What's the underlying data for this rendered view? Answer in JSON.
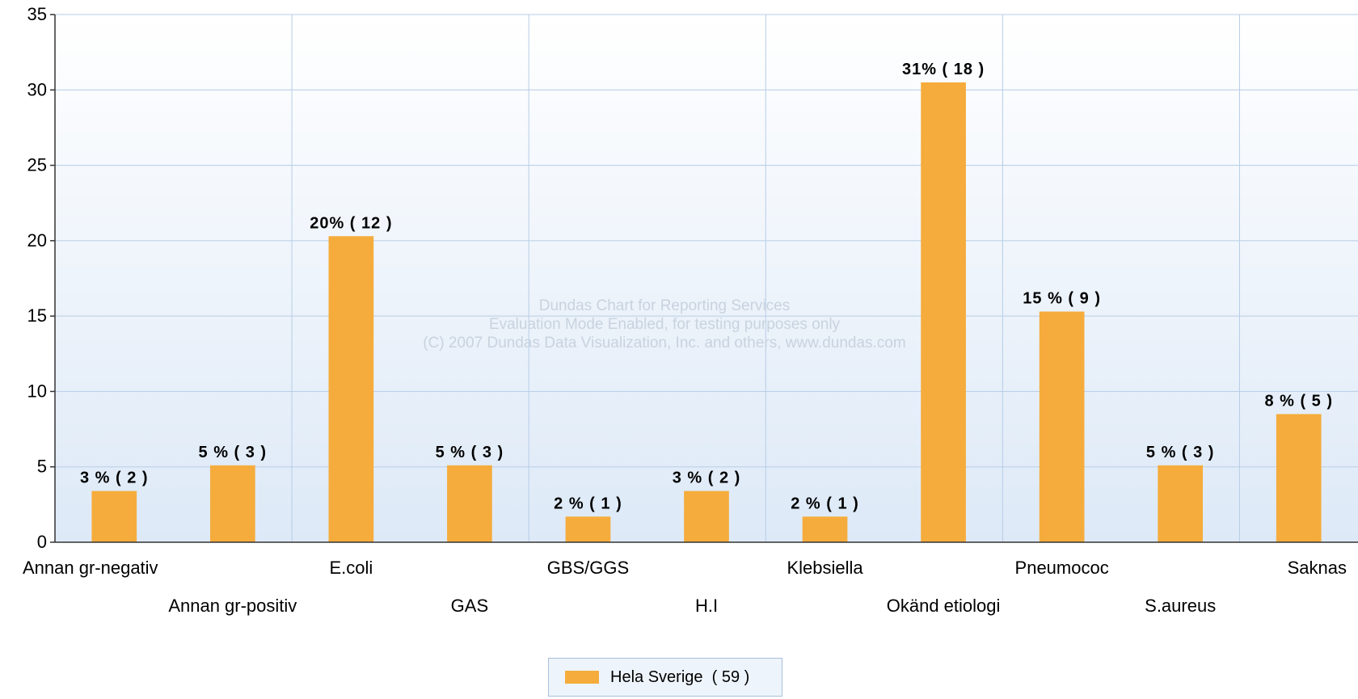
{
  "chart_data": {
    "type": "bar",
    "categories": [
      "Annan gr-negativ",
      "Annan gr-positiv",
      "E.coli",
      "GAS",
      "GBS/GGS",
      "H.I",
      "Klebsiella",
      "Okänd etiologi",
      "Pneumococ",
      "S.aureus",
      "Saknas"
    ],
    "values": [
      3.4,
      5.1,
      20.3,
      5.1,
      1.7,
      3.4,
      1.7,
      30.5,
      15.3,
      5.1,
      8.5
    ],
    "data_labels": [
      "3 % ( 2 )",
      "5 % ( 3 )",
      "20% ( 12 )",
      "5 % ( 3 )",
      "2 % ( 1 )",
      "3 % ( 2 )",
      "2 % ( 1 )",
      "31% ( 18 )",
      "15 % ( 9 )",
      "5 % ( 3 )",
      "8 % ( 5 )"
    ],
    "series": [
      {
        "name": "Hela Sverige  ( 59 )",
        "color": "#f5ac3c"
      }
    ],
    "ylim": [
      0,
      35
    ],
    "yticks": [
      "0",
      "5",
      "10",
      "15",
      "20",
      "25",
      "30",
      "35"
    ],
    "grid": true,
    "legend_position": "bottom-center",
    "title": "",
    "xlabel": "",
    "ylabel": ""
  },
  "watermark": [
    "Dundas Chart for Reporting Services",
    "Evaluation Mode Enabled, for testing purposes only",
    "(C) 2007 Dundas Data Visualization, Inc. and others, www.dundas.com"
  ],
  "legend": {
    "label": "Hela Sverige  ( 59 )"
  },
  "colors": {
    "bar": "#f5ac3c",
    "grid": "#b7cde6",
    "plot_top": "#ffffff",
    "plot_bottom": "#dde9f7"
  }
}
